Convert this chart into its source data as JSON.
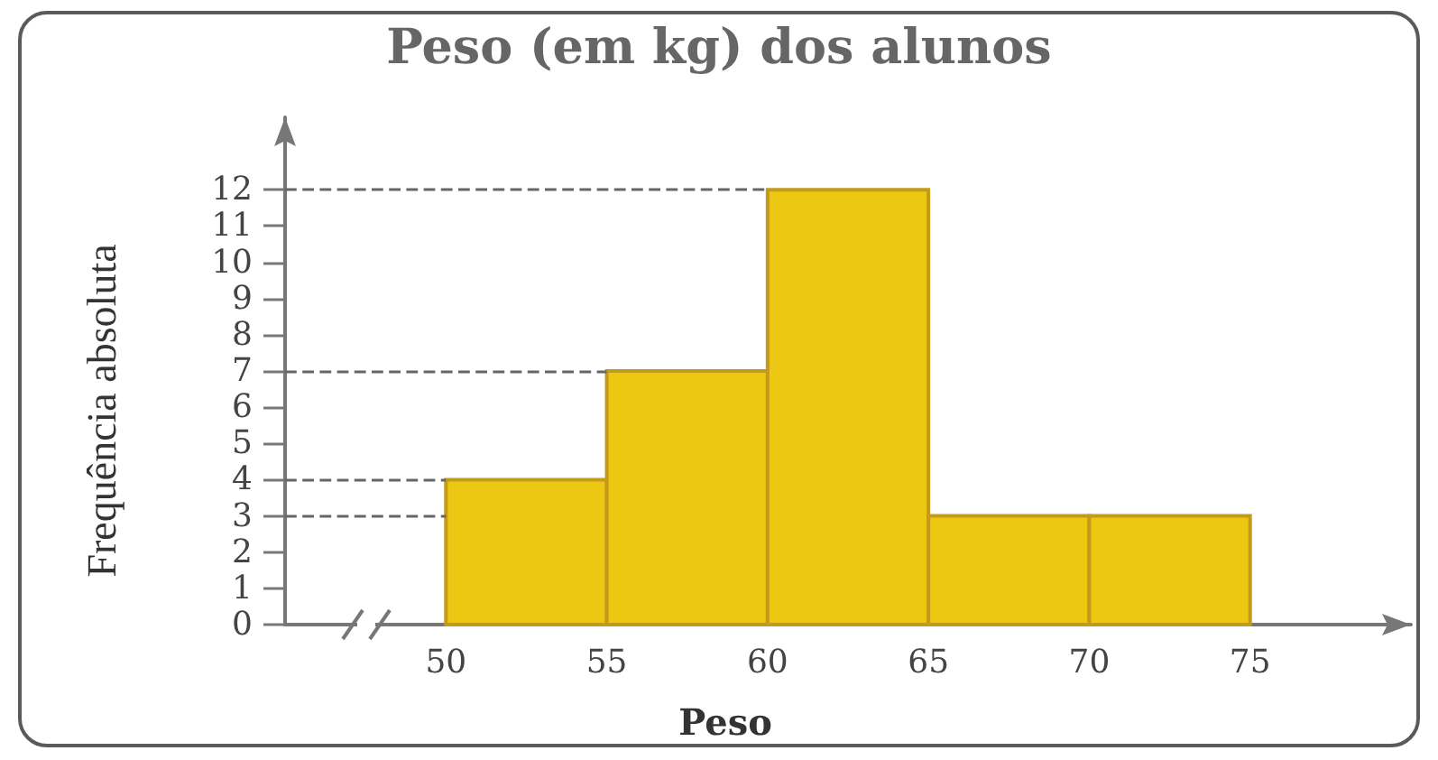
{
  "chart_data": {
    "type": "histogram",
    "title": "Peso (em kg) dos alunos",
    "xlabel": "Peso",
    "ylabel": "Frequência absoluta",
    "bins": [
      50,
      55,
      60,
      65,
      70,
      75
    ],
    "values": [
      4,
      7,
      12,
      3,
      3
    ],
    "color": "#ecc812",
    "xlim": [
      45,
      80
    ],
    "xticks": [
      50,
      55,
      60,
      65,
      70,
      75
    ],
    "ylim": [
      0,
      14
    ],
    "yticks": [
      0,
      1,
      2,
      3,
      4,
      5,
      6,
      7,
      8,
      9,
      10,
      11,
      12
    ],
    "ref_lines": [
      {
        "axis": "y",
        "value": 12,
        "color": "#666666",
        "line_style": "dashed"
      },
      {
        "axis": "y",
        "value": 7,
        "color": "#666666",
        "line_style": "dashed"
      },
      {
        "axis": "y",
        "value": 4,
        "color": "#666666",
        "line_style": "dashed"
      },
      {
        "axis": "y",
        "value": 3,
        "color": "#666666",
        "line_style": "dashed"
      }
    ]
  }
}
